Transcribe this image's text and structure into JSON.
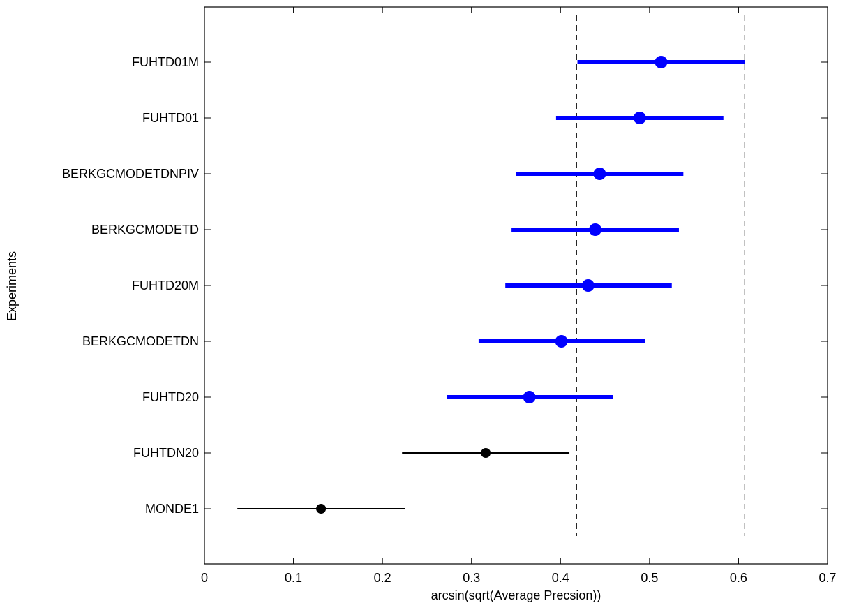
{
  "chart_data": {
    "type": "scatter",
    "subtype": "interval-plot",
    "title": "",
    "xlabel": "arcsin(sqrt(Average Precsion))",
    "ylabel": "Experiments",
    "xlim": [
      0,
      0.7
    ],
    "xticks": [
      0,
      0.1,
      0.2,
      0.3,
      0.4,
      0.5,
      0.6,
      0.7
    ],
    "xtick_labels": [
      "0",
      "0.1",
      "0.2",
      "0.3",
      "0.4",
      "0.5",
      "0.6",
      "0.7"
    ],
    "grid": false,
    "legend": "none",
    "reference_lines": [
      0.418,
      0.607
    ],
    "colors": {
      "highlight": "#0000ff",
      "other": "#000000"
    },
    "points": [
      {
        "label": "FUHTD01M",
        "mean": 0.513,
        "low": 0.419,
        "high": 0.607,
        "highlight": true
      },
      {
        "label": "FUHTD01",
        "mean": 0.489,
        "low": 0.395,
        "high": 0.583,
        "highlight": true
      },
      {
        "label": "BERKGCMODETDNPIV",
        "mean": 0.444,
        "low": 0.35,
        "high": 0.538,
        "highlight": true
      },
      {
        "label": "BERKGCMODETD",
        "mean": 0.439,
        "low": 0.345,
        "high": 0.533,
        "highlight": true
      },
      {
        "label": "FUHTD20M",
        "mean": 0.431,
        "low": 0.338,
        "high": 0.525,
        "highlight": true
      },
      {
        "label": "BERKGCMODETDN",
        "mean": 0.401,
        "low": 0.308,
        "high": 0.495,
        "highlight": true
      },
      {
        "label": "FUHTD20",
        "mean": 0.365,
        "low": 0.272,
        "high": 0.459,
        "highlight": true
      },
      {
        "label": "FUHTDN20",
        "mean": 0.316,
        "low": 0.222,
        "high": 0.41,
        "highlight": false
      },
      {
        "label": "MONDE1",
        "mean": 0.131,
        "low": 0.037,
        "high": 0.225,
        "highlight": false
      }
    ]
  }
}
